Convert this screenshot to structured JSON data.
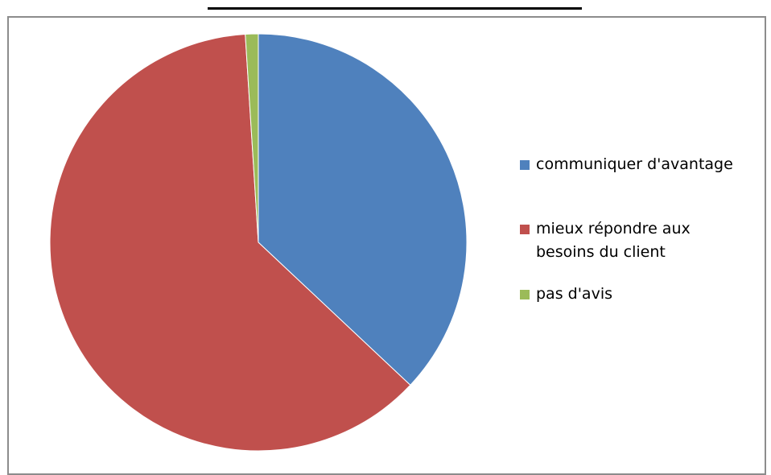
{
  "chart_data": {
    "type": "pie",
    "title": "",
    "series": [
      {
        "categories": [
          "communiquer d'avantage",
          "mieux répondre aux besoins du client",
          "pas d'avis"
        ],
        "values": [
          37,
          62,
          1
        ]
      }
    ],
    "slices": [
      {
        "label": "communiquer d'avantage",
        "label_lines": [
          "communiquer d'avantage"
        ],
        "value": 37,
        "color": "#4f81bd"
      },
      {
        "label": "mieux répondre aux besoins du client",
        "label_lines": [
          "mieux répondre aux",
          "besoins du client"
        ],
        "value": 62,
        "color": "#c0504d"
      },
      {
        "label": "pas d'avis",
        "label_lines": [
          "pas d'avis"
        ],
        "value": 1,
        "color": "#9bbb59"
      }
    ],
    "start_angle_deg": 0,
    "direction": "clockwise",
    "legend_position": "right"
  }
}
